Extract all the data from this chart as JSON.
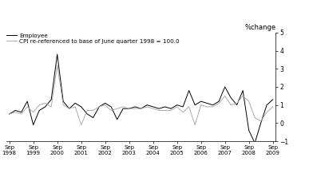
{
  "title": "",
  "ylabel": "%change",
  "ylim": [
    -1,
    5
  ],
  "yticks": [
    -1,
    0,
    1,
    2,
    3,
    4,
    5
  ],
  "legend_employee": "Employee",
  "legend_cpi": "CPI re-referenced to base of June quarter 1998 = 100.0",
  "x_labels": [
    "Sep\n1998",
    "Sep\n1999",
    "Sep\n2000",
    "Sep\n2001",
    "Sep\n2002",
    "Sep\n2003",
    "Sep\n2004",
    "Sep\n2005",
    "Sep\n2006",
    "Sep\n2007",
    "Sep\n2008",
    "Sep\n2009"
  ],
  "employee_color": "#000000",
  "cpi_color": "#aaaaaa",
  "background_color": "#ffffff",
  "employee": [
    0.5,
    0.7,
    0.6,
    1.2,
    -0.1,
    0.7,
    0.9,
    1.3,
    3.8,
    1.2,
    0.8,
    1.1,
    0.9,
    0.5,
    0.3,
    0.9,
    1.1,
    0.9,
    0.2,
    0.8,
    0.8,
    0.9,
    0.8,
    1.0,
    0.9,
    0.8,
    0.9,
    0.8,
    1.0,
    0.9,
    1.8,
    1.0,
    1.2,
    1.1,
    1.0,
    1.2,
    2.0,
    1.4,
    1.0,
    1.8,
    -0.4,
    -1.1,
    0.0,
    1.0,
    1.3
  ],
  "cpi": [
    0.5,
    0.6,
    0.5,
    0.9,
    0.6,
    1.0,
    1.1,
    0.9,
    3.2,
    1.0,
    0.8,
    0.9,
    -0.1,
    0.7,
    0.7,
    0.9,
    1.0,
    0.7,
    0.8,
    0.9,
    0.8,
    0.8,
    0.8,
    0.9,
    0.8,
    0.7,
    0.7,
    0.7,
    0.9,
    0.6,
    0.9,
    -0.1,
    1.0,
    0.9,
    0.9,
    1.1,
    1.5,
    1.0,
    1.1,
    1.5,
    1.2,
    0.3,
    0.1,
    0.6,
    0.9
  ]
}
